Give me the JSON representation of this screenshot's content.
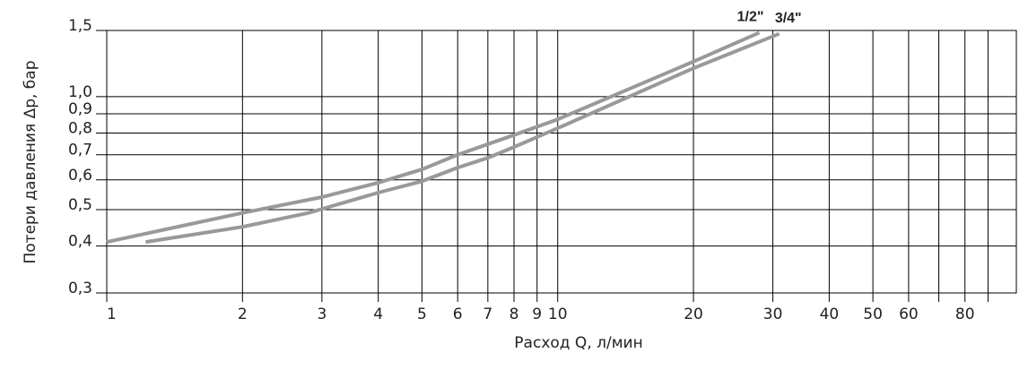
{
  "chart_data": {
    "type": "line",
    "x_label": "Расход Q, л/мин",
    "y_label": "Потери давления Δp, бар",
    "log_x": true,
    "log_y": true,
    "grid": true,
    "xlim": [
      1,
      104
    ],
    "ylim": [
      0.3,
      1.5
    ],
    "xticks": [
      1,
      2,
      3,
      4,
      5,
      6,
      7,
      8,
      9,
      10,
      20,
      30,
      40,
      50,
      60,
      80
    ],
    "xminor": [
      70,
      90
    ],
    "yticks": [
      {
        "value": 0.3,
        "label": "0,3"
      },
      {
        "value": 0.4,
        "label": "0,4"
      },
      {
        "value": 0.5,
        "label": "0,5"
      },
      {
        "value": 0.6,
        "label": "0,6"
      },
      {
        "value": 0.7,
        "label": "0,7"
      },
      {
        "value": 0.8,
        "label": "0,8"
      },
      {
        "value": 0.9,
        "label": "0,9"
      },
      {
        "value": 1.0,
        "label": "1,0"
      },
      {
        "value": 1.5,
        "label": "1,5"
      }
    ],
    "series": [
      {
        "name": "1/2\"",
        "color": "#999999",
        "x": [
          1,
          2,
          3,
          4,
          5,
          6,
          8,
          10,
          20,
          28
        ],
        "values": [
          0.41,
          0.49,
          0.54,
          0.59,
          0.64,
          0.7,
          0.79,
          0.87,
          1.24,
          1.48
        ]
      },
      {
        "name": "3/4\"",
        "color": "#999999",
        "x": [
          1.22,
          2,
          2.8,
          4,
          5,
          6,
          7,
          8,
          10,
          20,
          31
        ],
        "values": [
          0.41,
          0.45,
          0.49,
          0.555,
          0.595,
          0.647,
          0.687,
          0.734,
          0.824,
          1.19,
          1.47
        ]
      }
    ]
  }
}
